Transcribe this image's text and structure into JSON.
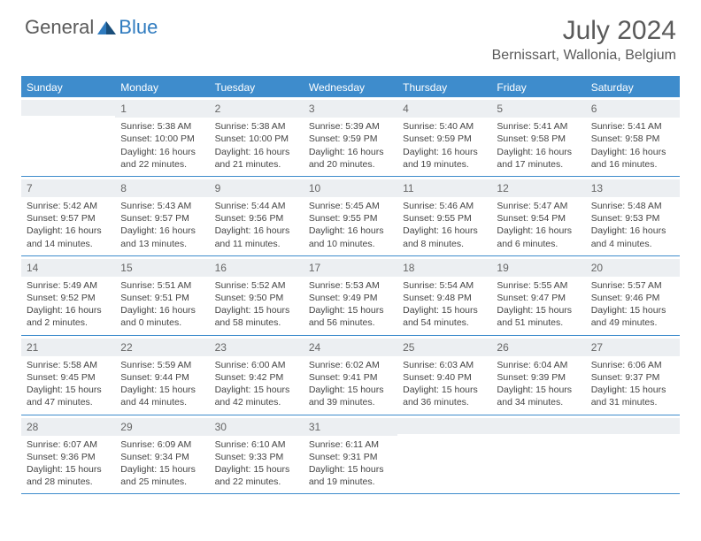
{
  "brand": {
    "general": "General",
    "blue": "Blue"
  },
  "title": "July 2024",
  "location": "Bernissart, Wallonia, Belgium",
  "dow": [
    "Sunday",
    "Monday",
    "Tuesday",
    "Wednesday",
    "Thursday",
    "Friday",
    "Saturday"
  ],
  "colors": {
    "accent": "#3e8ccc",
    "text": "#5a5a5a",
    "band": "#eceff2"
  },
  "weeks": [
    [
      {
        "n": "",
        "sr": "",
        "ss": "",
        "dl": ""
      },
      {
        "n": "1",
        "sr": "Sunrise: 5:38 AM",
        "ss": "Sunset: 10:00 PM",
        "dl": "Daylight: 16 hours and 22 minutes."
      },
      {
        "n": "2",
        "sr": "Sunrise: 5:38 AM",
        "ss": "Sunset: 10:00 PM",
        "dl": "Daylight: 16 hours and 21 minutes."
      },
      {
        "n": "3",
        "sr": "Sunrise: 5:39 AM",
        "ss": "Sunset: 9:59 PM",
        "dl": "Daylight: 16 hours and 20 minutes."
      },
      {
        "n": "4",
        "sr": "Sunrise: 5:40 AM",
        "ss": "Sunset: 9:59 PM",
        "dl": "Daylight: 16 hours and 19 minutes."
      },
      {
        "n": "5",
        "sr": "Sunrise: 5:41 AM",
        "ss": "Sunset: 9:58 PM",
        "dl": "Daylight: 16 hours and 17 minutes."
      },
      {
        "n": "6",
        "sr": "Sunrise: 5:41 AM",
        "ss": "Sunset: 9:58 PM",
        "dl": "Daylight: 16 hours and 16 minutes."
      }
    ],
    [
      {
        "n": "7",
        "sr": "Sunrise: 5:42 AM",
        "ss": "Sunset: 9:57 PM",
        "dl": "Daylight: 16 hours and 14 minutes."
      },
      {
        "n": "8",
        "sr": "Sunrise: 5:43 AM",
        "ss": "Sunset: 9:57 PM",
        "dl": "Daylight: 16 hours and 13 minutes."
      },
      {
        "n": "9",
        "sr": "Sunrise: 5:44 AM",
        "ss": "Sunset: 9:56 PM",
        "dl": "Daylight: 16 hours and 11 minutes."
      },
      {
        "n": "10",
        "sr": "Sunrise: 5:45 AM",
        "ss": "Sunset: 9:55 PM",
        "dl": "Daylight: 16 hours and 10 minutes."
      },
      {
        "n": "11",
        "sr": "Sunrise: 5:46 AM",
        "ss": "Sunset: 9:55 PM",
        "dl": "Daylight: 16 hours and 8 minutes."
      },
      {
        "n": "12",
        "sr": "Sunrise: 5:47 AM",
        "ss": "Sunset: 9:54 PM",
        "dl": "Daylight: 16 hours and 6 minutes."
      },
      {
        "n": "13",
        "sr": "Sunrise: 5:48 AM",
        "ss": "Sunset: 9:53 PM",
        "dl": "Daylight: 16 hours and 4 minutes."
      }
    ],
    [
      {
        "n": "14",
        "sr": "Sunrise: 5:49 AM",
        "ss": "Sunset: 9:52 PM",
        "dl": "Daylight: 16 hours and 2 minutes."
      },
      {
        "n": "15",
        "sr": "Sunrise: 5:51 AM",
        "ss": "Sunset: 9:51 PM",
        "dl": "Daylight: 16 hours and 0 minutes."
      },
      {
        "n": "16",
        "sr": "Sunrise: 5:52 AM",
        "ss": "Sunset: 9:50 PM",
        "dl": "Daylight: 15 hours and 58 minutes."
      },
      {
        "n": "17",
        "sr": "Sunrise: 5:53 AM",
        "ss": "Sunset: 9:49 PM",
        "dl": "Daylight: 15 hours and 56 minutes."
      },
      {
        "n": "18",
        "sr": "Sunrise: 5:54 AM",
        "ss": "Sunset: 9:48 PM",
        "dl": "Daylight: 15 hours and 54 minutes."
      },
      {
        "n": "19",
        "sr": "Sunrise: 5:55 AM",
        "ss": "Sunset: 9:47 PM",
        "dl": "Daylight: 15 hours and 51 minutes."
      },
      {
        "n": "20",
        "sr": "Sunrise: 5:57 AM",
        "ss": "Sunset: 9:46 PM",
        "dl": "Daylight: 15 hours and 49 minutes."
      }
    ],
    [
      {
        "n": "21",
        "sr": "Sunrise: 5:58 AM",
        "ss": "Sunset: 9:45 PM",
        "dl": "Daylight: 15 hours and 47 minutes."
      },
      {
        "n": "22",
        "sr": "Sunrise: 5:59 AM",
        "ss": "Sunset: 9:44 PM",
        "dl": "Daylight: 15 hours and 44 minutes."
      },
      {
        "n": "23",
        "sr": "Sunrise: 6:00 AM",
        "ss": "Sunset: 9:42 PM",
        "dl": "Daylight: 15 hours and 42 minutes."
      },
      {
        "n": "24",
        "sr": "Sunrise: 6:02 AM",
        "ss": "Sunset: 9:41 PM",
        "dl": "Daylight: 15 hours and 39 minutes."
      },
      {
        "n": "25",
        "sr": "Sunrise: 6:03 AM",
        "ss": "Sunset: 9:40 PM",
        "dl": "Daylight: 15 hours and 36 minutes."
      },
      {
        "n": "26",
        "sr": "Sunrise: 6:04 AM",
        "ss": "Sunset: 9:39 PM",
        "dl": "Daylight: 15 hours and 34 minutes."
      },
      {
        "n": "27",
        "sr": "Sunrise: 6:06 AM",
        "ss": "Sunset: 9:37 PM",
        "dl": "Daylight: 15 hours and 31 minutes."
      }
    ],
    [
      {
        "n": "28",
        "sr": "Sunrise: 6:07 AM",
        "ss": "Sunset: 9:36 PM",
        "dl": "Daylight: 15 hours and 28 minutes."
      },
      {
        "n": "29",
        "sr": "Sunrise: 6:09 AM",
        "ss": "Sunset: 9:34 PM",
        "dl": "Daylight: 15 hours and 25 minutes."
      },
      {
        "n": "30",
        "sr": "Sunrise: 6:10 AM",
        "ss": "Sunset: 9:33 PM",
        "dl": "Daylight: 15 hours and 22 minutes."
      },
      {
        "n": "31",
        "sr": "Sunrise: 6:11 AM",
        "ss": "Sunset: 9:31 PM",
        "dl": "Daylight: 15 hours and 19 minutes."
      },
      {
        "n": "",
        "sr": "",
        "ss": "",
        "dl": ""
      },
      {
        "n": "",
        "sr": "",
        "ss": "",
        "dl": ""
      },
      {
        "n": "",
        "sr": "",
        "ss": "",
        "dl": ""
      }
    ]
  ]
}
